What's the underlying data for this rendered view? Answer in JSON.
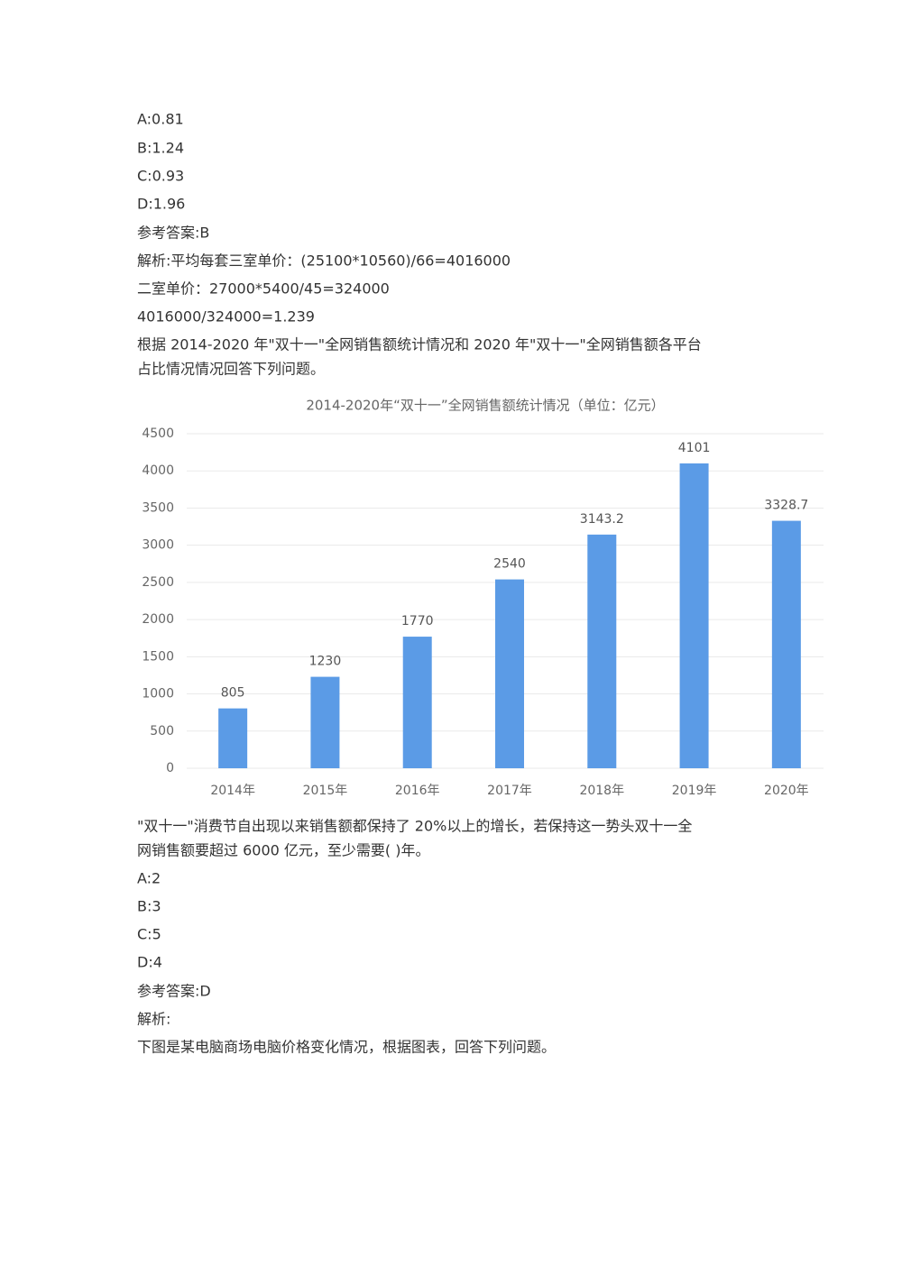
{
  "document": {
    "lines_top": [
      "A:0.81",
      "B:1.24",
      "C:0.93",
      "D:1.96",
      "参考答案:B",
      "解析:平均每套三室单价：(25100*10560)/66=4016000",
      "二室单价：27000*5400/45=324000",
      "4016000/324000=1.239",
      "根据 2014-2020 年\"双十一\"全网销售额统计情况和 2020 年\"双十一\"全网销售额各平台",
      "占比情况情况回答下列问题。"
    ],
    "lines_bottom": [
      "\"双十一\"消费节自出现以来销售额都保持了 20%以上的增长，若保持这一势头双十一全",
      "网销售额要超过 6000 亿元，至少需要( )年。",
      "A:2",
      "B:3",
      "C:5",
      "D:4",
      "参考答案:D",
      "解析:",
      "下图是某电脑商场电脑价格变化情况，根据图表，回答下列问题。"
    ]
  },
  "chart_data": {
    "type": "bar",
    "title": "2014-2020年“双十一”全网销售额统计情况（单位：亿元）",
    "categories": [
      "2014年",
      "2015年",
      "2016年",
      "2017年",
      "2018年",
      "2019年",
      "2020年"
    ],
    "values": [
      805,
      1230,
      1770,
      2540,
      3143.2,
      4101,
      3328.7
    ],
    "color": "#5b9be6",
    "ylim": [
      0,
      4500
    ],
    "yticks": [
      0,
      500,
      1000,
      1500,
      2000,
      2500,
      3000,
      3500,
      4000,
      4500
    ],
    "grid": true
  }
}
